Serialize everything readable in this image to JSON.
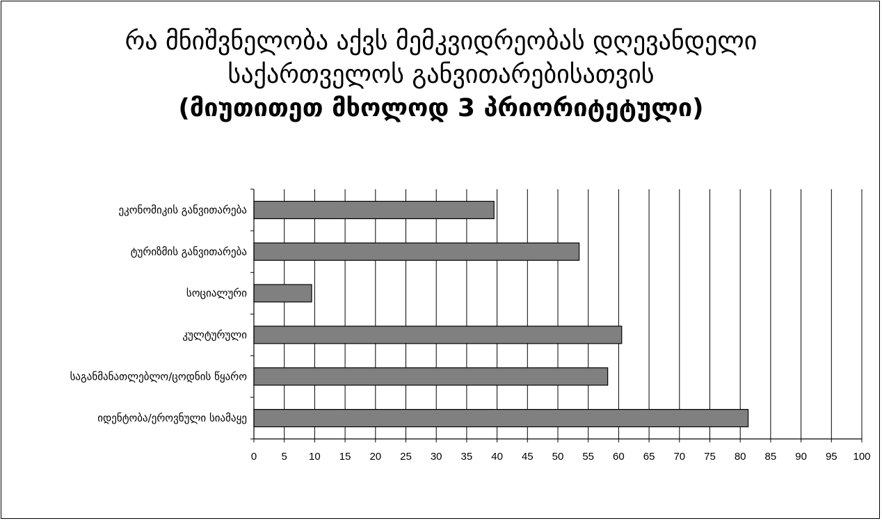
{
  "chart_data": {
    "type": "bar",
    "orientation": "horizontal",
    "title_lines": [
      "რა მნიშვნელობა აქვს მემკვიდრეობას დღევანდელი",
      "საქართველოს განვითარებისათვის",
      "(მიუთითეთ მხოლოდ 3 პრიორიტეტული)"
    ],
    "categories": [
      "ეკონომიკის განვითარება",
      "ტურიზმის განვითარება",
      "სოციალური",
      "კულტურული",
      "საგანმანათლებლო/ცოდნის წყარო",
      "იდენტობა/ეროვნული სიამაყე"
    ],
    "values": [
      39.5,
      53.5,
      9.5,
      60.5,
      58.2,
      81.3
    ],
    "xlim": [
      0,
      100
    ],
    "xticks": [
      0,
      5,
      10,
      15,
      20,
      25,
      30,
      35,
      40,
      45,
      50,
      55,
      60,
      65,
      70,
      75,
      80,
      85,
      90,
      95,
      100
    ],
    "grid": "vertical",
    "legend": "none",
    "bar_color": "#808080",
    "bar_edge_color": "#000000"
  }
}
